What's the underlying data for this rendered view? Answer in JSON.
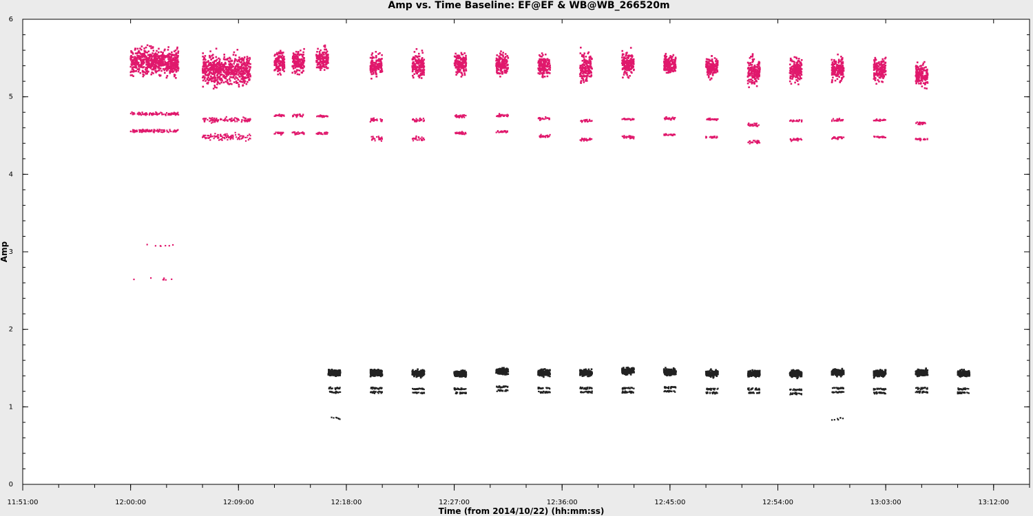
{
  "chart_data": {
    "type": "scatter",
    "title": "Amp vs. Time Baseline: EF@EF & WB@WB_266520m",
    "xlabel": "Time (from 2014/10/22) (hh:mm:ss)",
    "ylabel": "Amp",
    "x_unit": "time hh:mm:ss",
    "xlim": [
      "11:51:00",
      "13:15:00"
    ],
    "ylim": [
      0,
      6
    ],
    "x_ticks": [
      "11:51:00",
      "12:00:00",
      "12:09:00",
      "12:18:00",
      "12:27:00",
      "12:36:00",
      "12:45:00",
      "12:54:00",
      "13:03:00",
      "13:12:00"
    ],
    "x_minor_step_min": 3,
    "y_ticks": [
      "0",
      "1",
      "2",
      "3",
      "4",
      "5",
      "6"
    ],
    "y_minor_step": 0.2,
    "grid": false,
    "legend": "none",
    "series": [
      {
        "color": "#e0186c",
        "scans": [
          {
            "start": "12:00:00",
            "end": "12:04:00",
            "bands": [
              {
                "y": 5.45,
                "spread": 0.28
              },
              {
                "y": 4.78,
                "spread": 0.03
              },
              {
                "y": 4.56,
                "spread": 0.03
              }
            ],
            "extra": [
              {
                "y": 3.08,
                "spread": 0.02
              },
              {
                "y": 2.65,
                "spread": 0.03
              }
            ]
          },
          {
            "start": "12:06:00",
            "end": "12:10:00",
            "bands": [
              {
                "y": 5.35,
                "spread": 0.32
              },
              {
                "y": 4.7,
                "spread": 0.05
              },
              {
                "y": 4.48,
                "spread": 0.07
              }
            ]
          },
          {
            "start": "12:12:00",
            "end": "12:12:50",
            "bands": [
              {
                "y": 5.45,
                "spread": 0.25
              },
              {
                "y": 4.76,
                "spread": 0.02
              },
              {
                "y": 4.53,
                "spread": 0.03
              }
            ]
          },
          {
            "start": "12:13:30",
            "end": "12:14:30",
            "bands": [
              {
                "y": 5.45,
                "spread": 0.25
              },
              {
                "y": 4.76,
                "spread": 0.03
              },
              {
                "y": 4.53,
                "spread": 0.03
              }
            ]
          },
          {
            "start": "12:15:30",
            "end": "12:16:30",
            "bands": [
              {
                "y": 5.48,
                "spread": 0.22
              },
              {
                "y": 4.75,
                "spread": 0.02
              },
              {
                "y": 4.53,
                "spread": 0.03
              }
            ]
          },
          {
            "start": "12:20:00",
            "end": "12:21:00",
            "bands": [
              {
                "y": 5.4,
                "spread": 0.25
              },
              {
                "y": 4.7,
                "spread": 0.04
              },
              {
                "y": 4.46,
                "spread": 0.05
              }
            ]
          },
          {
            "start": "12:23:30",
            "end": "12:24:30",
            "bands": [
              {
                "y": 5.4,
                "spread": 0.25
              },
              {
                "y": 4.7,
                "spread": 0.04
              },
              {
                "y": 4.46,
                "spread": 0.05
              }
            ]
          },
          {
            "start": "12:27:00",
            "end": "12:28:00",
            "bands": [
              {
                "y": 5.43,
                "spread": 0.22
              },
              {
                "y": 4.75,
                "spread": 0.03
              },
              {
                "y": 4.53,
                "spread": 0.03
              }
            ]
          },
          {
            "start": "12:30:30",
            "end": "12:31:30",
            "bands": [
              {
                "y": 5.42,
                "spread": 0.24
              },
              {
                "y": 4.76,
                "spread": 0.03
              },
              {
                "y": 4.55,
                "spread": 0.02
              }
            ]
          },
          {
            "start": "12:34:00",
            "end": "12:35:00",
            "bands": [
              {
                "y": 5.4,
                "spread": 0.24
              },
              {
                "y": 4.72,
                "spread": 0.03
              },
              {
                "y": 4.49,
                "spread": 0.03
              }
            ]
          },
          {
            "start": "12:37:30",
            "end": "12:38:30",
            "bands": [
              {
                "y": 5.38,
                "spread": 0.3
              },
              {
                "y": 4.69,
                "spread": 0.03
              },
              {
                "y": 4.45,
                "spread": 0.04
              }
            ]
          },
          {
            "start": "12:41:00",
            "end": "12:42:00",
            "bands": [
              {
                "y": 5.42,
                "spread": 0.24
              },
              {
                "y": 4.71,
                "spread": 0.02
              },
              {
                "y": 4.48,
                "spread": 0.04
              }
            ]
          },
          {
            "start": "12:44:30",
            "end": "12:45:30",
            "bands": [
              {
                "y": 5.42,
                "spread": 0.2
              },
              {
                "y": 4.72,
                "spread": 0.03
              },
              {
                "y": 4.51,
                "spread": 0.02
              }
            ]
          },
          {
            "start": "12:48:00",
            "end": "12:49:00",
            "bands": [
              {
                "y": 5.38,
                "spread": 0.22
              },
              {
                "y": 4.71,
                "spread": 0.02
              },
              {
                "y": 4.48,
                "spread": 0.02
              }
            ]
          },
          {
            "start": "12:51:30",
            "end": "12:52:30",
            "bands": [
              {
                "y": 5.32,
                "spread": 0.28
              },
              {
                "y": 4.64,
                "spread": 0.04
              },
              {
                "y": 4.42,
                "spread": 0.04
              }
            ]
          },
          {
            "start": "12:55:00",
            "end": "12:56:00",
            "bands": [
              {
                "y": 5.35,
                "spread": 0.27
              },
              {
                "y": 4.69,
                "spread": 0.02
              },
              {
                "y": 4.45,
                "spread": 0.03
              }
            ]
          },
          {
            "start": "12:58:30",
            "end": "12:59:30",
            "bands": [
              {
                "y": 5.35,
                "spread": 0.25
              },
              {
                "y": 4.7,
                "spread": 0.03
              },
              {
                "y": 4.47,
                "spread": 0.03
              }
            ]
          },
          {
            "start": "13:02:00",
            "end": "13:03:00",
            "bands": [
              {
                "y": 5.35,
                "spread": 0.25
              },
              {
                "y": 4.7,
                "spread": 0.02
              },
              {
                "y": 4.48,
                "spread": 0.02
              }
            ]
          },
          {
            "start": "13:05:30",
            "end": "13:06:30",
            "bands": [
              {
                "y": 5.28,
                "spread": 0.25
              },
              {
                "y": 4.66,
                "spread": 0.03
              },
              {
                "y": 4.45,
                "spread": 0.02
              }
            ]
          }
        ]
      },
      {
        "color": "#222222",
        "scans": [
          {
            "start": "12:16:30",
            "end": "12:17:30",
            "bands": [
              {
                "y": 1.44,
                "spread": 0.07
              },
              {
                "y": 1.24,
                "spread": 0.02
              },
              {
                "y": 1.19,
                "spread": 0.02
              }
            ],
            "extra": [
              {
                "y": 0.85,
                "spread": 0.02
              }
            ]
          },
          {
            "start": "12:20:00",
            "end": "12:21:00",
            "bands": [
              {
                "y": 1.44,
                "spread": 0.07
              },
              {
                "y": 1.24,
                "spread": 0.02
              },
              {
                "y": 1.19,
                "spread": 0.02
              }
            ]
          },
          {
            "start": "12:23:30",
            "end": "12:24:30",
            "bands": [
              {
                "y": 1.43,
                "spread": 0.07
              },
              {
                "y": 1.23,
                "spread": 0.02
              },
              {
                "y": 1.18,
                "spread": 0.02
              }
            ]
          },
          {
            "start": "12:27:00",
            "end": "12:28:00",
            "bands": [
              {
                "y": 1.43,
                "spread": 0.07
              },
              {
                "y": 1.23,
                "spread": 0.02
              },
              {
                "y": 1.18,
                "spread": 0.02
              }
            ]
          },
          {
            "start": "12:30:30",
            "end": "12:31:30",
            "bands": [
              {
                "y": 1.46,
                "spread": 0.07
              },
              {
                "y": 1.26,
                "spread": 0.02
              },
              {
                "y": 1.21,
                "spread": 0.02
              }
            ]
          },
          {
            "start": "12:34:00",
            "end": "12:35:00",
            "bands": [
              {
                "y": 1.44,
                "spread": 0.07
              },
              {
                "y": 1.24,
                "spread": 0.02
              },
              {
                "y": 1.19,
                "spread": 0.02
              }
            ]
          },
          {
            "start": "12:37:30",
            "end": "12:38:30",
            "bands": [
              {
                "y": 1.44,
                "spread": 0.07
              },
              {
                "y": 1.24,
                "spread": 0.02
              },
              {
                "y": 1.19,
                "spread": 0.02
              }
            ]
          },
          {
            "start": "12:41:00",
            "end": "12:42:00",
            "bands": [
              {
                "y": 1.46,
                "spread": 0.07
              },
              {
                "y": 1.24,
                "spread": 0.02
              },
              {
                "y": 1.19,
                "spread": 0.02
              }
            ]
          },
          {
            "start": "12:44:30",
            "end": "12:45:30",
            "bands": [
              {
                "y": 1.45,
                "spread": 0.07
              },
              {
                "y": 1.25,
                "spread": 0.02
              },
              {
                "y": 1.2,
                "spread": 0.02
              }
            ]
          },
          {
            "start": "12:48:00",
            "end": "12:49:00",
            "bands": [
              {
                "y": 1.43,
                "spread": 0.07
              },
              {
                "y": 1.23,
                "spread": 0.02
              },
              {
                "y": 1.18,
                "spread": 0.02
              }
            ]
          },
          {
            "start": "12:51:30",
            "end": "12:52:30",
            "bands": [
              {
                "y": 1.43,
                "spread": 0.07
              },
              {
                "y": 1.23,
                "spread": 0.02
              },
              {
                "y": 1.18,
                "spread": 0.02
              }
            ]
          },
          {
            "start": "12:55:00",
            "end": "12:56:00",
            "bands": [
              {
                "y": 1.43,
                "spread": 0.07
              },
              {
                "y": 1.22,
                "spread": 0.02
              },
              {
                "y": 1.17,
                "spread": 0.02
              }
            ]
          },
          {
            "start": "12:58:30",
            "end": "12:59:30",
            "bands": [
              {
                "y": 1.44,
                "spread": 0.07
              },
              {
                "y": 1.24,
                "spread": 0.02
              },
              {
                "y": 1.19,
                "spread": 0.02
              }
            ],
            "extra": [
              {
                "y": 0.84,
                "spread": 0.03
              }
            ]
          },
          {
            "start": "13:02:00",
            "end": "13:03:00",
            "bands": [
              {
                "y": 1.43,
                "spread": 0.07
              },
              {
                "y": 1.23,
                "spread": 0.02
              },
              {
                "y": 1.18,
                "spread": 0.02
              }
            ]
          },
          {
            "start": "13:05:30",
            "end": "13:06:30",
            "bands": [
              {
                "y": 1.44,
                "spread": 0.07
              },
              {
                "y": 1.24,
                "spread": 0.02
              },
              {
                "y": 1.19,
                "spread": 0.02
              }
            ]
          },
          {
            "start": "13:09:00",
            "end": "13:10:00",
            "bands": [
              {
                "y": 1.43,
                "spread": 0.07
              },
              {
                "y": 1.23,
                "spread": 0.02
              },
              {
                "y": 1.18,
                "spread": 0.02
              }
            ]
          }
        ]
      }
    ]
  }
}
